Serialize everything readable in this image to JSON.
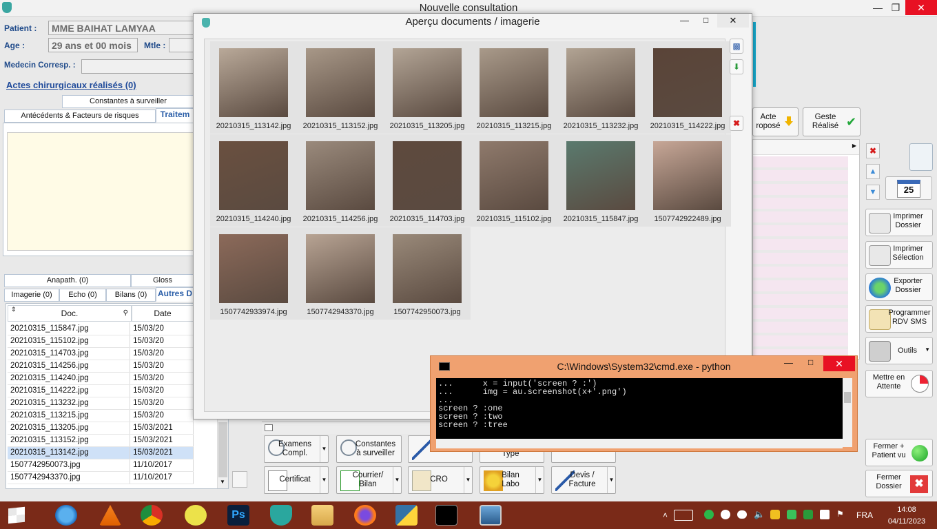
{
  "window": {
    "title": "Nouvelle consultation"
  },
  "patient": {
    "patient_label": "Patient :",
    "patient_value": "MME BAIHAT LAMYAA",
    "age_label": "Age :",
    "age_value": "29 ans et 00 mois",
    "mtle_label": "Mtle :",
    "medecin_label": "Medecin Corresp. :",
    "actes_link": "Actes chirurgicaux réalisés (0)"
  },
  "tabs_top": {
    "constantes": "Constantes à surveiller",
    "antecedents": "Antécédents & Facteurs de risques",
    "traitement": "Traitem"
  },
  "tabs_bottom": {
    "anapath": "Anapath. (0)",
    "gloss": "Gloss",
    "imagerie": "Imagerie (0)",
    "echo": "Echo (0)",
    "bilans": "Bilans (0)",
    "autres": "Autres D"
  },
  "doc_table": {
    "headers": [
      "Doc.",
      "Date"
    ],
    "rows": [
      [
        "20210315_115847.jpg",
        "15/03/20"
      ],
      [
        "20210315_115102.jpg",
        "15/03/20"
      ],
      [
        "20210315_114703.jpg",
        "15/03/20"
      ],
      [
        "20210315_114256.jpg",
        "15/03/20"
      ],
      [
        "20210315_114240.jpg",
        "15/03/20"
      ],
      [
        "20210315_114222.jpg",
        "15/03/20"
      ],
      [
        "20210315_113232.jpg",
        "15/03/20"
      ],
      [
        "20210315_113215.jpg",
        "15/03/20"
      ],
      [
        "20210315_113205.jpg",
        "15/03/2021"
      ],
      [
        "20210315_113152.jpg",
        "15/03/2021"
      ],
      [
        "20210315_113142.jpg",
        "15/03/2021"
      ],
      [
        "1507742950073.jpg",
        "11/10/2017"
      ],
      [
        "1507742943370.jpg",
        "11/10/2017"
      ]
    ],
    "selected_index": 10
  },
  "dialog": {
    "title": "Aperçu documents / imagerie",
    "thumbnails": [
      {
        "name": "20210315_113142.jpg",
        "color": "#b9a999"
      },
      {
        "name": "20210315_113152.jpg",
        "color": "#a89888"
      },
      {
        "name": "20210315_113205.jpg",
        "color": "#b3a596"
      },
      {
        "name": "20210315_113215.jpg",
        "color": "#a99a8a"
      },
      {
        "name": "20210315_113232.jpg",
        "color": "#b2a494"
      },
      {
        "name": "20210315_114222.jpg",
        "color": "#5a4438"
      },
      {
        "name": "20210315_114240.jpg",
        "color": "#6a5040"
      },
      {
        "name": "20210315_114256.jpg",
        "color": "#9a8a7c"
      },
      {
        "name": "20210315_114703.jpg",
        "color": "#5e4a3e"
      },
      {
        "name": "20210315_115102.jpg",
        "color": "#8f7a6c"
      },
      {
        "name": "20210315_115847.jpg",
        "color": "#5a7a6e"
      },
      {
        "name": "1507742922489.jpg",
        "color": "#c7a797"
      },
      {
        "name": "1507742933974.jpg",
        "color": "#8c6a5a"
      },
      {
        "name": "1507742943370.jpg",
        "color": "#b8a494"
      },
      {
        "name": "1507742950073.jpg",
        "color": "#9a8a7a"
      }
    ]
  },
  "right_top": {
    "acte_propose": "Acte\nroposé",
    "geste_realise": "Geste\nRéalisé"
  },
  "right_panel": {
    "imprimer_dossier": "Imprimer\nDossier",
    "imprimer_selection": "Imprimer\nSélection",
    "exporter_dossier": "Exporter\nDossier",
    "programmer_rdv": "Programmer\nRDV SMS",
    "outils": "Outils",
    "mettre_attente": "Mettre en\nAttente",
    "fermer_patient_vu": "Fermer +\nPatient vu",
    "fermer_dossier": "Fermer\nDossier",
    "calendar_day": "25"
  },
  "bottom_buttons": {
    "examens": "Examens\nCompl.",
    "constantes": "Constantes\nà surveiller",
    "certificat": "Certificat",
    "courrier": "Courrier/\nBilan",
    "cro": "CRO",
    "bilan_labo": "Bilan\nLabo",
    "devis": "Devis /\nFacture",
    "type": "Type"
  },
  "cmd": {
    "title": "C:\\Windows\\System32\\cmd.exe - python",
    "lines": "...      x = input('screen ? :')\n...      img = au.screenshot(x+'.png')\n...\nscreen ? :one\nscreen ? :two\nscreen ? :tree"
  },
  "taskbar": {
    "language": "FRA",
    "time": "14:08",
    "date": "04/11/2023"
  },
  "colors": {
    "taskbar": "#7a2a18",
    "cmd_frame": "#f0a170",
    "accent_blue": "#1f4a9a"
  }
}
